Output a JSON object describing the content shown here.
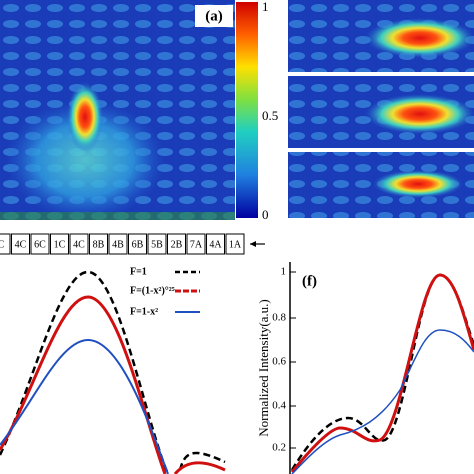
{
  "panels": {
    "a": {
      "label": "(a)"
    },
    "f": {
      "label": "(f)"
    }
  },
  "colorbar": {
    "ticks": [
      "1",
      "0.5",
      "0"
    ]
  },
  "elements": [
    "C",
    "4C",
    "6C",
    "1C",
    "4C",
    "8B",
    "4B",
    "6B",
    "5B",
    "2B",
    "7A",
    "4A",
    "1A"
  ],
  "legend": [
    "F=1",
    "F=(1-x²)°²⁵",
    "F=1-x²"
  ],
  "plot_f": {
    "ylabel": "Normalized Intensity(a.u.)",
    "yticks": [
      "1",
      "0.8",
      "0.6",
      "0.4",
      "0.2"
    ]
  }
}
